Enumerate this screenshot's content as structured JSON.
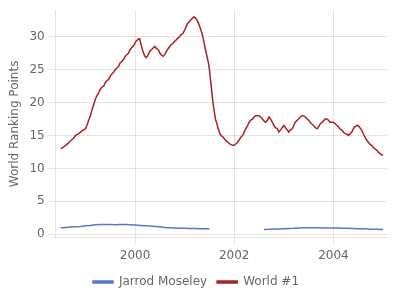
{
  "chart_data": {
    "type": "line",
    "ylabel": "World Ranking Points",
    "xlim": [
      1998.4,
      2005.1
    ],
    "xticks": [
      2000,
      2002,
      2004
    ],
    "ylim": [
      -0.5,
      34
    ],
    "yticks": [
      0,
      5,
      10,
      15,
      20,
      25,
      30
    ],
    "grid": true,
    "legend": "bottom",
    "series": [
      {
        "name": "Jarrod Moseley",
        "color": "#5577cc",
        "x": [
          1998.5,
          1998.6,
          1998.7,
          1998.8,
          1998.9,
          1999.0,
          1999.1,
          1999.2,
          1999.3,
          1999.4,
          1999.5,
          1999.6,
          1999.7,
          1999.8,
          1999.9,
          2000.0,
          2000.1,
          2000.2,
          2000.3,
          2000.4,
          2000.5,
          2000.6,
          2000.7,
          2000.8,
          2000.9,
          2001.0,
          2001.1,
          2001.2,
          2001.3,
          2001.4,
          2001.5,
          null,
          2002.6,
          2002.7,
          2002.8,
          2002.9,
          2003.0,
          2003.1,
          2003.2,
          2003.3,
          2003.4,
          2003.5,
          2003.6,
          2003.7,
          2003.8,
          2003.9,
          2004.0,
          2004.1,
          2004.2,
          2004.3,
          2004.4,
          2004.5,
          2004.6,
          2004.7,
          2004.8,
          2004.9,
          2005.0
        ],
        "values": [
          1.0,
          1.05,
          1.1,
          1.15,
          1.2,
          1.3,
          1.35,
          1.45,
          1.5,
          1.5,
          1.48,
          1.45,
          1.5,
          1.5,
          1.45,
          1.4,
          1.35,
          1.3,
          1.25,
          1.2,
          1.15,
          1.05,
          1.0,
          0.95,
          0.9,
          0.9,
          0.88,
          0.88,
          0.85,
          0.85,
          0.85,
          null,
          0.72,
          0.75,
          0.8,
          0.82,
          0.85,
          0.88,
          0.9,
          0.95,
          1.0,
          1.0,
          1.0,
          1.0,
          0.95,
          0.95,
          0.95,
          0.95,
          0.9,
          0.9,
          0.88,
          0.85,
          0.83,
          0.8,
          0.78,
          0.75,
          0.72
        ]
      },
      {
        "name": "World #1",
        "color": "#aa2222",
        "x": [
          1998.5,
          1998.55,
          1998.6,
          1998.65,
          1998.7,
          1998.75,
          1998.8,
          1998.85,
          1998.9,
          1998.95,
          1999.0,
          1999.03,
          1999.06,
          1999.1,
          1999.13,
          1999.16,
          1999.2,
          1999.23,
          1999.27,
          1999.3,
          1999.33,
          1999.37,
          1999.4,
          1999.43,
          1999.47,
          1999.5,
          1999.53,
          1999.57,
          1999.6,
          1999.63,
          1999.67,
          1999.7,
          1999.73,
          1999.77,
          1999.8,
          1999.83,
          1999.87,
          1999.9,
          1999.93,
          1999.97,
          2000.0,
          2000.02,
          2000.05,
          2000.08,
          2000.1,
          2000.12,
          2000.15,
          2000.18,
          2000.2,
          2000.22,
          2000.25,
          2000.28,
          2000.3,
          2000.33,
          2000.37,
          2000.4,
          2000.43,
          2000.47,
          2000.5,
          2000.53,
          2000.57,
          2000.6,
          2000.63,
          2000.67,
          2000.7,
          2000.73,
          2000.77,
          2000.8,
          2000.83,
          2000.87,
          2000.9,
          2000.93,
          2000.97,
          2001.0,
          2001.03,
          2001.06,
          2001.1,
          2001.13,
          2001.16,
          2001.19,
          2001.22,
          2001.25,
          2001.28,
          2001.32,
          2001.35,
          2001.38,
          2001.42,
          2001.45,
          2001.48,
          2001.5,
          2001.52,
          2001.55,
          2001.57,
          2001.6,
          2001.62,
          2001.65,
          2001.67,
          2001.7,
          2001.73,
          2001.77,
          2001.8,
          2001.83,
          2001.87,
          2001.9,
          2001.93,
          2001.97,
          2002.0,
          2002.03,
          2002.07,
          2002.1,
          2002.13,
          2002.17,
          2002.2,
          2002.23,
          2002.27,
          2002.3,
          2002.33,
          2002.37,
          2002.4,
          2002.43,
          2002.47,
          2002.5,
          2002.53,
          2002.57,
          2002.6,
          2002.63,
          2002.67,
          2002.7,
          2002.73,
          2002.77,
          2002.8,
          2002.83,
          2002.87,
          2002.9,
          2002.93,
          2002.97,
          2003.0,
          2003.03,
          2003.07,
          2003.1,
          2003.13,
          2003.17,
          2003.2,
          2003.23,
          2003.27,
          2003.3,
          2003.33,
          2003.37,
          2003.4,
          2003.43,
          2003.47,
          2003.5,
          2003.53,
          2003.57,
          2003.6,
          2003.63,
          2003.67,
          2003.7,
          2003.73,
          2003.77,
          2003.8,
          2003.83,
          2003.87,
          2003.9,
          2003.93,
          2003.97,
          2004.0,
          2004.03,
          2004.07,
          2004.1,
          2004.13,
          2004.17,
          2004.2,
          2004.23,
          2004.27,
          2004.3,
          2004.33,
          2004.37,
          2004.4,
          2004.43,
          2004.47,
          2004.5,
          2004.53,
          2004.57,
          2004.6,
          2004.63,
          2004.67,
          2004.7,
          2004.73,
          2004.77,
          2004.8,
          2004.83,
          2004.87,
          2004.9,
          2004.93,
          2004.97,
          2005.0
        ],
        "values": [
          13.0,
          13.2,
          13.5,
          13.8,
          14.2,
          14.5,
          15.0,
          15.2,
          15.5,
          15.8,
          16.0,
          16.5,
          17.2,
          18.0,
          18.8,
          19.5,
          20.5,
          21.0,
          21.5,
          22.0,
          22.3,
          22.5,
          23.0,
          23.3,
          23.5,
          24.0,
          24.3,
          24.6,
          25.0,
          25.2,
          25.5,
          26.0,
          26.2,
          26.5,
          27.0,
          27.2,
          27.5,
          28.0,
          28.3,
          28.6,
          29.0,
          29.3,
          29.5,
          29.7,
          29.5,
          28.8,
          28.0,
          27.3,
          27.0,
          26.8,
          27.0,
          27.5,
          27.8,
          28.0,
          28.3,
          28.5,
          28.2,
          28.0,
          27.5,
          27.2,
          27.0,
          27.3,
          27.7,
          28.2,
          28.5,
          28.8,
          29.0,
          29.3,
          29.5,
          29.8,
          30.0,
          30.3,
          30.5,
          31.0,
          31.5,
          32.0,
          32.3,
          32.6,
          32.8,
          33.0,
          32.8,
          32.5,
          32.0,
          31.2,
          30.5,
          29.5,
          28.0,
          27.0,
          26.0,
          25.0,
          23.5,
          21.5,
          20.0,
          18.5,
          17.5,
          16.8,
          16.2,
          15.5,
          15.0,
          14.8,
          14.5,
          14.2,
          14.0,
          13.8,
          13.6,
          13.5,
          13.5,
          13.7,
          14.0,
          14.3,
          14.7,
          15.0,
          15.5,
          16.0,
          16.5,
          17.0,
          17.3,
          17.5,
          17.8,
          18.0,
          18.0,
          18.0,
          17.8,
          17.5,
          17.2,
          17.0,
          17.3,
          17.8,
          17.5,
          17.0,
          16.5,
          16.2,
          16.0,
          15.5,
          15.8,
          16.2,
          16.5,
          16.2,
          15.8,
          15.5,
          15.8,
          16.0,
          16.5,
          17.0,
          17.3,
          17.5,
          17.8,
          18.0,
          18.0,
          17.8,
          17.5,
          17.3,
          17.0,
          16.7,
          16.5,
          16.2,
          16.0,
          16.3,
          16.7,
          17.0,
          17.2,
          17.5,
          17.5,
          17.3,
          17.0,
          17.0,
          17.0,
          16.8,
          16.5,
          16.3,
          16.0,
          15.8,
          15.5,
          15.3,
          15.2,
          15.0,
          15.2,
          15.5,
          16.0,
          16.3,
          16.5,
          16.5,
          16.2,
          15.8,
          15.3,
          14.8,
          14.3,
          14.0,
          13.7,
          13.5,
          13.2,
          13.0,
          12.8,
          12.5,
          12.3,
          12.1,
          12.0
        ]
      }
    ]
  }
}
